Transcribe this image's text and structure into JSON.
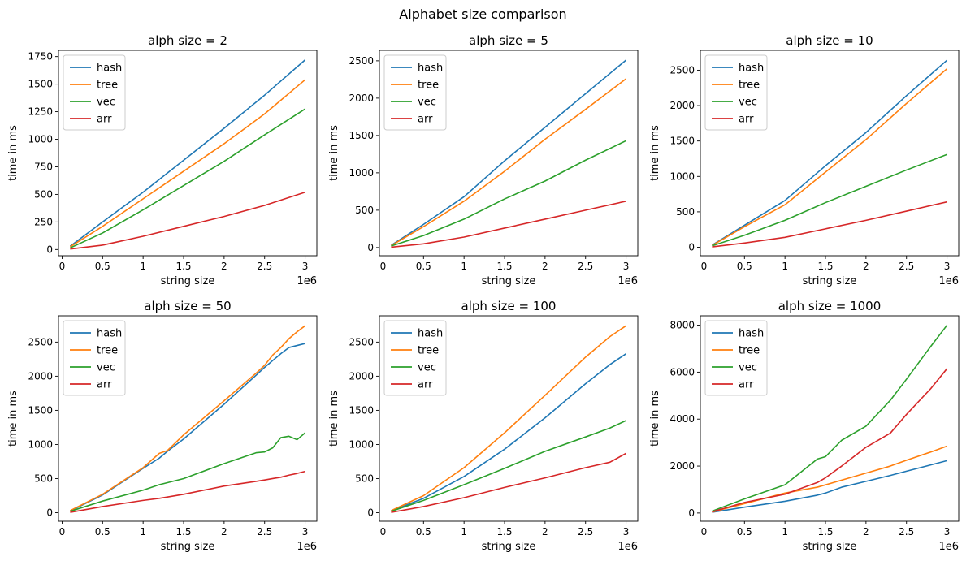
{
  "suptitle": "Alphabet size comparison",
  "colors": {
    "hash": "#1f77b4",
    "tree": "#ff7f0e",
    "vec": "#2ca02c",
    "arr": "#d62728"
  },
  "chart_data": [
    {
      "type": "line",
      "title": "alph size = 2",
      "xlabel": "string size",
      "ylabel": "time in ms",
      "x_offset_label": "1e6",
      "xlim": [
        -0.0445,
        3.1445
      ],
      "ylim": [
        -56.5,
        1806.5
      ],
      "xticks": [
        0.0,
        0.5,
        1.0,
        1.5,
        2.0,
        2.5,
        3.0
      ],
      "yticks": [
        0,
        250,
        500,
        750,
        1000,
        1250,
        1500,
        1750
      ],
      "legend": "upper left",
      "x": [
        0.1,
        0.5,
        1.0,
        1.5,
        2.0,
        2.5,
        3.0
      ],
      "series": [
        {
          "name": "hash",
          "values": [
            30,
            250,
            520,
            810,
            1100,
            1400,
            1720
          ]
        },
        {
          "name": "tree",
          "values": [
            25,
            210,
            460,
            710,
            960,
            1230,
            1540
          ]
        },
        {
          "name": "vec",
          "values": [
            15,
            150,
            360,
            580,
            800,
            1040,
            1275
          ]
        },
        {
          "name": "arr",
          "values": [
            5,
            40,
            120,
            210,
            300,
            400,
            520
          ]
        }
      ]
    },
    {
      "type": "line",
      "title": "alph size = 5",
      "xlabel": "string size",
      "ylabel": "time in ms",
      "x_offset_label": "1e6",
      "xlim": [
        -0.0445,
        3.1445
      ],
      "ylim": [
        -110,
        2640
      ],
      "xticks": [
        0.0,
        0.5,
        1.0,
        1.5,
        2.0,
        2.5,
        3.0
      ],
      "yticks": [
        0,
        500,
        1000,
        1500,
        2000,
        2500
      ],
      "legend": "upper left",
      "x": [
        0.1,
        0.5,
        1.0,
        1.5,
        2.0,
        2.5,
        3.0
      ],
      "series": [
        {
          "name": "hash",
          "values": [
            30,
            310,
            680,
            1160,
            1610,
            2060,
            2510
          ]
        },
        {
          "name": "tree",
          "values": [
            25,
            280,
            620,
            1020,
            1450,
            1850,
            2260
          ]
        },
        {
          "name": "vec",
          "values": [
            20,
            160,
            380,
            650,
            890,
            1170,
            1430
          ]
        },
        {
          "name": "arr",
          "values": [
            5,
            50,
            140,
            260,
            380,
            500,
            620
          ]
        }
      ]
    },
    {
      "type": "line",
      "title": "alph size = 10",
      "xlabel": "string size",
      "ylabel": "time in ms",
      "x_offset_label": "1e6",
      "xlim": [
        -0.0445,
        3.1445
      ],
      "ylim": [
        -120,
        2780
      ],
      "xticks": [
        0.0,
        0.5,
        1.0,
        1.5,
        2.0,
        2.5,
        3.0
      ],
      "yticks": [
        0,
        500,
        1000,
        1500,
        2000,
        2500
      ],
      "legend": "upper left",
      "x": [
        0.1,
        0.5,
        1.0,
        1.5,
        2.0,
        2.5,
        3.0
      ],
      "series": [
        {
          "name": "hash",
          "values": [
            30,
            310,
            660,
            1150,
            1620,
            2140,
            2640
          ]
        },
        {
          "name": "tree",
          "values": [
            25,
            290,
            600,
            1060,
            1520,
            2030,
            2520
          ]
        },
        {
          "name": "vec",
          "values": [
            20,
            170,
            380,
            630,
            860,
            1090,
            1310
          ]
        },
        {
          "name": "arr",
          "values": [
            5,
            60,
            140,
            260,
            380,
            510,
            640
          ]
        }
      ]
    },
    {
      "type": "line",
      "title": "alph size = 50",
      "xlabel": "string size",
      "ylabel": "time in ms",
      "x_offset_label": "1e6",
      "xlim": [
        -0.0445,
        3.1445
      ],
      "ylim": [
        -125,
        2885
      ],
      "xticks": [
        0.0,
        0.5,
        1.0,
        1.5,
        2.0,
        2.5,
        3.0
      ],
      "yticks": [
        0,
        500,
        1000,
        1500,
        2000,
        2500
      ],
      "legend": "upper left",
      "x": [
        0.1,
        0.5,
        1.0,
        1.2,
        1.3,
        1.5,
        2.0,
        2.4,
        2.5,
        2.6,
        2.7,
        2.8,
        2.9,
        3.0
      ],
      "series": [
        {
          "name": "hash",
          "values": [
            25,
            260,
            650,
            800,
            900,
            1080,
            1590,
            2020,
            2130,
            2230,
            2330,
            2420,
            2450,
            2480
          ]
        },
        {
          "name": "tree",
          "values": [
            30,
            270,
            660,
            870,
            910,
            1140,
            1640,
            2050,
            2160,
            2310,
            2420,
            2550,
            2650,
            2740
          ]
        },
        {
          "name": "vec",
          "values": [
            20,
            170,
            330,
            410,
            440,
            500,
            720,
            880,
            890,
            950,
            1100,
            1120,
            1070,
            1170
          ]
        },
        {
          "name": "arr",
          "values": [
            5,
            90,
            180,
            210,
            230,
            270,
            390,
            460,
            480,
            500,
            520,
            550,
            575,
            605
          ]
        }
      ]
    },
    {
      "type": "line",
      "title": "alph size = 100",
      "xlabel": "string size",
      "ylabel": "time in ms",
      "x_offset_label": "1e6",
      "xlim": [
        -0.0445,
        3.1445
      ],
      "ylim": [
        -125,
        2885
      ],
      "xticks": [
        0.0,
        0.5,
        1.0,
        1.5,
        2.0,
        2.5,
        3.0
      ],
      "yticks": [
        0,
        500,
        1000,
        1500,
        2000,
        2500
      ],
      "legend": "upper left",
      "x": [
        0.1,
        0.5,
        1.0,
        1.5,
        2.0,
        2.5,
        2.8,
        3.0
      ],
      "series": [
        {
          "name": "hash",
          "values": [
            25,
            210,
            530,
            930,
            1390,
            1890,
            2170,
            2330
          ]
        },
        {
          "name": "tree",
          "values": [
            30,
            250,
            660,
            1170,
            1720,
            2280,
            2580,
            2740
          ]
        },
        {
          "name": "vec",
          "values": [
            20,
            180,
            410,
            650,
            900,
            1110,
            1240,
            1350
          ]
        },
        {
          "name": "arr",
          "values": [
            5,
            90,
            220,
            370,
            510,
            660,
            740,
            870
          ]
        }
      ]
    },
    {
      "type": "line",
      "title": "alph size = 1000",
      "xlabel": "string size",
      "ylabel": "time in ms",
      "x_offset_label": "1e6",
      "xlim": [
        -0.0445,
        3.1445
      ],
      "ylim": [
        -350,
        8400
      ],
      "xticks": [
        0.0,
        0.5,
        1.0,
        1.5,
        2.0,
        2.5,
        3.0
      ],
      "yticks": [
        0,
        2000,
        4000,
        6000,
        8000
      ],
      "legend": "upper left",
      "x": [
        0.1,
        0.5,
        1.0,
        1.4,
        1.5,
        1.7,
        2.0,
        2.3,
        2.5,
        2.8,
        3.0
      ],
      "series": [
        {
          "name": "hash",
          "values": [
            30,
            250,
            500,
            760,
            850,
            1100,
            1350,
            1600,
            1780,
            2050,
            2230
          ]
        },
        {
          "name": "tree",
          "values": [
            40,
            400,
            850,
            1100,
            1200,
            1400,
            1700,
            2000,
            2250,
            2600,
            2850
          ]
        },
        {
          "name": "vec",
          "values": [
            80,
            600,
            1200,
            2300,
            2400,
            3100,
            3700,
            4800,
            5700,
            7100,
            8000
          ]
        },
        {
          "name": "arr",
          "values": [
            50,
            450,
            800,
            1300,
            1500,
            2000,
            2800,
            3400,
            4200,
            5300,
            6150
          ]
        }
      ]
    }
  ]
}
